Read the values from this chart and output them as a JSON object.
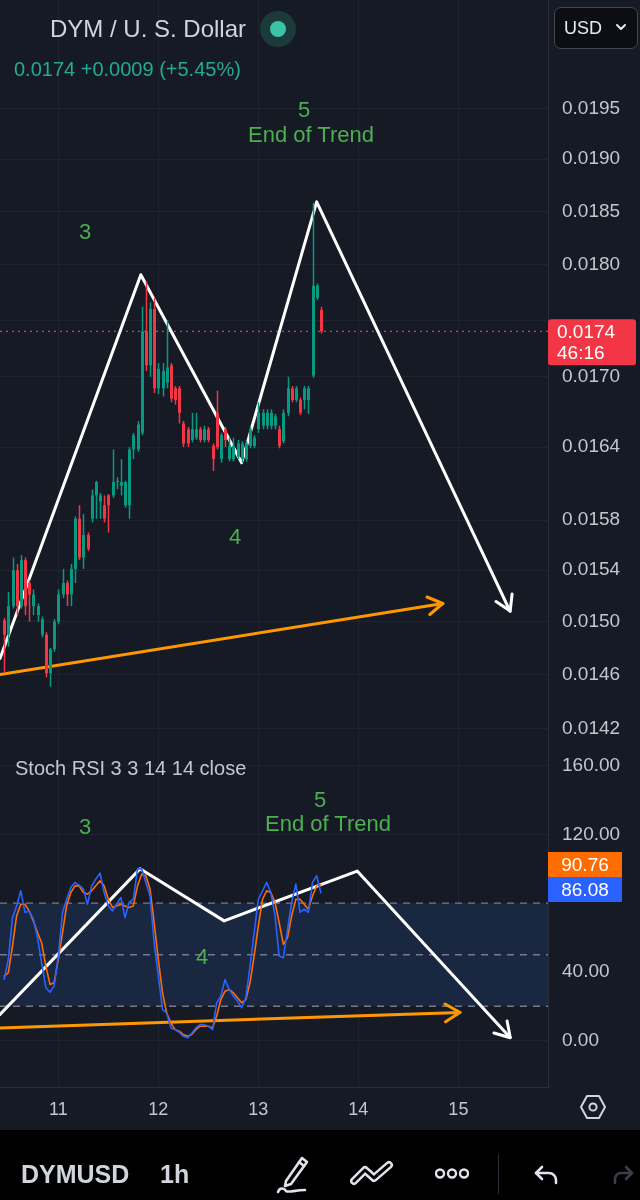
{
  "chart_data": [
    {
      "type": "candlestick",
      "title": "DYM / U. S. Dollar",
      "subtitle": "0.0174 +0.0009 (+5.45%)",
      "x": [
        10.458,
        10.5,
        10.542,
        10.583,
        10.625,
        10.667,
        10.708,
        10.75,
        10.792,
        10.833,
        10.875,
        10.917,
        10.958,
        11,
        11.042,
        11.083,
        11.125,
        11.167,
        11.208,
        11.25,
        11.292,
        11.333,
        11.375,
        11.417,
        11.458,
        11.5,
        11.542,
        11.583,
        11.625,
        11.667,
        11.708,
        11.75,
        11.792,
        11.833,
        11.875,
        11.917,
        11.958,
        12,
        12.042,
        12.083,
        12.125,
        12.167,
        12.208,
        12.25,
        12.292,
        12.333,
        12.375,
        12.417,
        12.458,
        12.5,
        12.542,
        12.583,
        12.625,
        12.667,
        12.708,
        12.75,
        12.792,
        12.833,
        12.875,
        12.917,
        12.958,
        13,
        13.042,
        13.083,
        13.125,
        13.167,
        13.208,
        13.25,
        13.292,
        13.333,
        13.375,
        13.417,
        13.458,
        13.5,
        13.542,
        13.583,
        13.625
      ],
      "ohlc": [
        [
          0.01501,
          0.01503,
          0.01461,
          0.0149
        ],
        [
          0.0149,
          0.01523,
          0.01481,
          0.01512
        ],
        [
          0.01512,
          0.0155,
          0.0151,
          0.0154
        ],
        [
          0.0154,
          0.01545,
          0.01505,
          0.01512
        ],
        [
          0.01512,
          0.01552,
          0.0151,
          0.01548
        ],
        [
          0.01548,
          0.0155,
          0.01505,
          0.01512
        ],
        [
          0.0153,
          0.01532,
          0.015,
          0.01521
        ],
        [
          0.01512,
          0.01525,
          0.01505,
          0.01521
        ],
        [
          0.01505,
          0.01514,
          0.015,
          0.01512
        ],
        [
          0.0149,
          0.01504,
          0.01488,
          0.01502
        ],
        [
          0.0149,
          0.01492,
          0.01458,
          0.01461
        ],
        [
          0.01461,
          0.0148,
          0.01451,
          0.01479
        ],
        [
          0.01479,
          0.01502,
          0.01477,
          0.015
        ],
        [
          0.015,
          0.01525,
          0.01498,
          0.01521
        ],
        [
          0.01521,
          0.01541,
          0.01518,
          0.0153
        ],
        [
          0.0153,
          0.01532,
          0.01512,
          0.01521
        ],
        [
          0.01521,
          0.01545,
          0.01512,
          0.01541
        ],
        [
          0.01541,
          0.01583,
          0.0153,
          0.01581
        ],
        [
          0.01581,
          0.01592,
          0.01548,
          0.0155
        ],
        [
          0.0155,
          0.01585,
          0.01541,
          0.01568
        ],
        [
          0.01568,
          0.0157,
          0.01555,
          0.01557
        ],
        [
          0.01581,
          0.01605,
          0.01578,
          0.016
        ],
        [
          0.016,
          0.01612,
          0.01581,
          0.01611
        ],
        [
          0.01595,
          0.01602,
          0.01581,
          0.016
        ],
        [
          0.01592,
          0.016,
          0.01578,
          0.01581
        ],
        [
          0.016,
          0.01601,
          0.0157,
          0.01592
        ],
        [
          0.016,
          0.01638,
          0.01598,
          0.01611
        ],
        [
          0.01611,
          0.01615,
          0.01605,
          0.01612
        ],
        [
          0.01608,
          0.0163,
          0.016,
          0.01611
        ],
        [
          0.01592,
          0.01612,
          0.0159,
          0.01611
        ],
        [
          0.01592,
          0.0164,
          0.01581,
          0.01638
        ],
        [
          0.01638,
          0.01652,
          0.0163,
          0.0165
        ],
        [
          0.01638,
          0.01662,
          0.01636,
          0.01659
        ],
        [
          0.01652,
          0.01762,
          0.0165,
          0.0174
        ],
        [
          0.0174,
          0.01785,
          0.01705,
          0.0171
        ],
        [
          0.0171,
          0.01766,
          0.017,
          0.0176
        ],
        [
          0.0176,
          0.0177,
          0.01686,
          0.0169
        ],
        [
          0.0169,
          0.01712,
          0.01685,
          0.01707
        ],
        [
          0.0169,
          0.01712,
          0.01683,
          0.01705
        ],
        [
          0.01695,
          0.0175,
          0.0169,
          0.01708
        ],
        [
          0.0171,
          0.01712,
          0.01678,
          0.01681
        ],
        [
          0.0169,
          0.01692,
          0.01676,
          0.0168
        ],
        [
          0.0169,
          0.01692,
          0.0166,
          0.01669
        ],
        [
          0.0166,
          0.01662,
          0.0164,
          0.01643
        ],
        [
          0.01655,
          0.01657,
          0.0164,
          0.01643
        ],
        [
          0.01646,
          0.01669,
          0.01644,
          0.01655
        ],
        [
          0.01648,
          0.01669,
          0.01646,
          0.01655
        ],
        [
          0.01655,
          0.01657,
          0.01644,
          0.01646
        ],
        [
          0.01646,
          0.01658,
          0.01644,
          0.01655
        ],
        [
          0.01655,
          0.01657,
          0.01644,
          0.01646
        ],
        [
          0.01641,
          0.01643,
          0.0162,
          0.0163
        ],
        [
          0.01669,
          0.01688,
          0.01638,
          0.0164
        ],
        [
          0.0163,
          0.01652,
          0.01627,
          0.0165
        ],
        [
          0.01655,
          0.01657,
          0.0164,
          0.01646
        ],
        [
          0.0163,
          0.01648,
          0.01628,
          0.01641
        ],
        [
          0.0163,
          0.01648,
          0.01628,
          0.01641
        ],
        [
          0.01632,
          0.01646,
          0.0163,
          0.01643
        ],
        [
          0.0163,
          0.01645,
          0.01627,
          0.01643
        ],
        [
          0.0163,
          0.01645,
          0.01628,
          0.01643
        ],
        [
          0.01641,
          0.01657,
          0.01639,
          0.01655
        ],
        [
          0.01641,
          0.0165,
          0.01639,
          0.01648
        ],
        [
          0.01655,
          0.01678,
          0.01652,
          0.01669
        ],
        [
          0.01658,
          0.01672,
          0.01655,
          0.01669
        ],
        [
          0.01658,
          0.01672,
          0.01655,
          0.01669
        ],
        [
          0.01658,
          0.01672,
          0.01655,
          0.01669
        ],
        [
          0.01658,
          0.01668,
          0.01655,
          0.01666
        ],
        [
          0.01655,
          0.01658,
          0.01639,
          0.01641
        ],
        [
          0.01645,
          0.01672,
          0.01643,
          0.01669
        ],
        [
          0.01669,
          0.017,
          0.01666,
          0.0169
        ],
        [
          0.0169,
          0.01692,
          0.01678,
          0.0168
        ],
        [
          0.0168,
          0.01692,
          0.01678,
          0.0169
        ],
        [
          0.0168,
          0.01682,
          0.01667,
          0.01669
        ],
        [
          0.0168,
          0.01692,
          0.01672,
          0.0169
        ],
        [
          0.0168,
          0.01692,
          0.01668,
          0.0169
        ],
        [
          0.01701,
          0.01858,
          0.01699,
          0.01781
        ],
        [
          0.0177,
          0.01783,
          0.01768,
          0.01781
        ],
        [
          0.01759,
          0.01762,
          0.01738,
          0.0174
        ]
      ],
      "series": [
        {
          "type": "line",
          "color": "#ffffff",
          "x": [
            10.417,
            11.825,
            12.833,
            13.583,
            15.517
          ],
          "values": [
            0.01472,
            0.01791,
            0.01627,
            0.01859,
            0.01508
          ]
        },
        {
          "type": "line",
          "color": "#ff9800",
          "x": [
            10.417,
            14.846
          ],
          "values": [
            0.0146,
            0.01514
          ]
        }
      ],
      "xlim": [
        10.417,
        15.896
      ],
      "xticks": [
        11,
        12,
        13,
        14,
        15
      ],
      "ylim": [
        0.01412,
        0.02061
      ],
      "yticks": [
        0.0195,
        {
          "value": 0.019,
          "label": "0.0190"
        },
        0.0185,
        {
          "value": 0.018,
          "label": "0.0180"
        },
        {
          "value": 0.0175,
          "label": null
        },
        {
          "value": 0.017,
          "label": "0.0170"
        },
        0.0164,
        0.0158,
        0.0154,
        {
          "value": 0.015,
          "label": "0.0150"
        },
        0.0146,
        0.0142
      ],
      "log": "y",
      "grid": true,
      "tick_labels": "y",
      "ref_lines": [
        {
          "axis": "y",
          "value": 0.0174,
          "label": "0.0174\n46:16",
          "color": "#f23645",
          "line_style": "dotted"
        }
      ],
      "annotations": [
        "3",
        "4",
        "5",
        "End of Trend",
        "USD"
      ]
    },
    {
      "type": "line",
      "title": "Stoch RSI 3 3 14 14 close",
      "x": [
        10.458,
        10.5,
        10.542,
        10.583,
        10.625,
        10.667,
        10.708,
        10.75,
        10.792,
        10.833,
        10.875,
        10.917,
        10.958,
        11,
        11.042,
        11.083,
        11.125,
        11.167,
        11.208,
        11.25,
        11.292,
        11.333,
        11.375,
        11.417,
        11.458,
        11.5,
        11.542,
        11.583,
        11.625,
        11.667,
        11.708,
        11.75,
        11.792,
        11.833,
        11.875,
        11.917,
        11.958,
        12,
        12.042,
        12.083,
        12.125,
        12.167,
        12.208,
        12.25,
        12.292,
        12.333,
        12.375,
        12.417,
        12.458,
        12.5,
        12.542,
        12.583,
        12.625,
        12.667,
        12.708,
        12.75,
        12.792,
        12.833,
        12.875,
        12.917,
        12.958,
        13,
        13.042,
        13.083,
        13.125,
        13.167,
        13.208,
        13.25,
        13.292,
        13.333,
        13.375,
        13.417,
        13.458,
        13.5,
        13.542,
        13.583,
        13.625
      ],
      "series": [
        {
          "color": "#2962ff",
          "values": [
            35.6,
            47.3,
            71.6,
            78.4,
            87.2,
            74.6,
            75.5,
            70.7,
            60.0,
            45.4,
            30.8,
            28.2,
            31.7,
            49.2,
            74.6,
            82.3,
            89.1,
            92.1,
            90.5,
            88.2,
            79.4,
            90.1,
            94.0,
            97.5,
            86.2,
            78.4,
            75.5,
            79.4,
            83.3,
            71.6,
            80.4,
            82.3,
            100.0,
            100.0,
            92.1,
            84.3,
            57.0,
            37.6,
            18.1,
            16.2,
            7.4,
            6.4,
            4.9,
            2.5,
            1.6,
            4.1,
            7.4,
            9.3,
            9.3,
            8.4,
            6.4,
            22.0,
            25.9,
            35.6,
            29.8,
            25.9,
            23.0,
            19.1,
            24.9,
            43.4,
            62.9,
            82.3,
            87.2,
            92.1,
            86.2,
            72.6,
            49.2,
            48.3,
            64.8,
            80.4,
            91.1,
            74.6,
            76.5,
            74.6,
            92.1,
            96.0,
            86.08
          ]
        },
        {
          "color": "#ff6d00",
          "values": [
            37.6,
            39.5,
            55.1,
            72.6,
            79.4,
            79.4,
            75.5,
            69.7,
            62.9,
            57.0,
            43.4,
            32.7,
            33.7,
            47.3,
            62.9,
            78.4,
            86.2,
            90.1,
            90.1,
            86.2,
            85.3,
            87.2,
            90.1,
            93.0,
            90.1,
            82.3,
            77.5,
            78.4,
            79.4,
            78.4,
            77.5,
            78.4,
            90.1,
            96.9,
            96.0,
            88.2,
            68.7,
            47.3,
            27.8,
            16.2,
            10.3,
            6.4,
            5.5,
            3.5,
            2.5,
            3.5,
            6.4,
            8.4,
            8.4,
            8.4,
            7.4,
            14.2,
            23.9,
            28.8,
            29.8,
            27.8,
            24.9,
            22.0,
            23.9,
            33.7,
            49.2,
            66.8,
            82.3,
            87.2,
            86.2,
            80.4,
            68.7,
            56.1,
            60.0,
            72.6,
            82.3,
            82.3,
            79.4,
            76.5,
            84.3,
            90.1,
            90.76
          ]
        },
        {
          "color": "#ffffff",
          "x": [
            10.417,
            11.817,
            12.658,
            13.988,
            15.517
          ],
          "values": [
            15.2,
            100,
            69.7,
            98.7,
            1.8
          ]
        },
        {
          "color": "#ff9800",
          "x": [
            10.417,
            15.017
          ],
          "values": [
            7.4,
            16.4
          ]
        }
      ],
      "xlim": [
        10.417,
        15.896
      ],
      "xticks": [
        11,
        12,
        13,
        14,
        15
      ],
      "ylim": [
        -27,
        175
      ],
      "yticks": [
        {
          "value": 160,
          "label": "160.00"
        },
        {
          "value": 120,
          "label": "120.00"
        },
        {
          "value": 80,
          "label": null
        },
        {
          "value": 40,
          "label": "40.00"
        },
        {
          "value": 0,
          "label": "0.00"
        }
      ],
      "grid": true,
      "ref_lines": [
        {
          "axis": "y",
          "value": 80,
          "color": "#787b86",
          "line_style": "dashed"
        },
        {
          "axis": "y",
          "value": 50,
          "color": "#787b86",
          "line_style": "dashed"
        },
        {
          "axis": "y",
          "value": 20,
          "color": "#787b86",
          "line_style": "dashed"
        }
      ],
      "bands": [
        {
          "axis": "y",
          "from": 20,
          "to": 80,
          "color": "#1a2740"
        }
      ],
      "annotations": [
        "3",
        "4",
        "5",
        "End of Trend",
        "90.76",
        "86.08",
        "DYMUSD",
        "1h"
      ]
    }
  ]
}
